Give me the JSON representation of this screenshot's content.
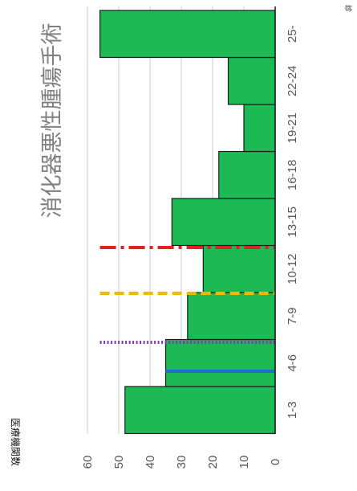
{
  "chart_data": {
    "type": "bar",
    "title": "消化器悪性腫瘍手術",
    "ylabel": "医療機関数",
    "xlabel": "",
    "note": "診",
    "categories": [
      "1-3",
      "4-6",
      "7-9",
      "10-12",
      "13-15",
      "16-18",
      "19-21",
      "22-24",
      "25-"
    ],
    "values": [
      48,
      35,
      28,
      23,
      33,
      18,
      10,
      15,
      56
    ],
    "yticks": [
      0,
      10,
      20,
      30,
      40,
      50,
      60
    ],
    "ylim": [
      0,
      60
    ],
    "grid": true,
    "bar_color": "#1db954",
    "bar_edge_color": "#1a1a1a",
    "orientation": "rotated 90° clockwise",
    "reference_lines": [
      {
        "style": "solid",
        "color": "#1e6ec8",
        "x": "4-6",
        "level": 35
      },
      {
        "style": "dotted",
        "color": "#7a3eb3",
        "x": "between 4-6 and 7-9",
        "level": 56
      },
      {
        "style": "dashed",
        "color": "#f5b800",
        "x": "between 7-9 and 10-12",
        "level": 56
      },
      {
        "style": "dash-dot",
        "color": "#e02020",
        "x": "between 10-12 and 13-15",
        "level": 56
      }
    ]
  }
}
